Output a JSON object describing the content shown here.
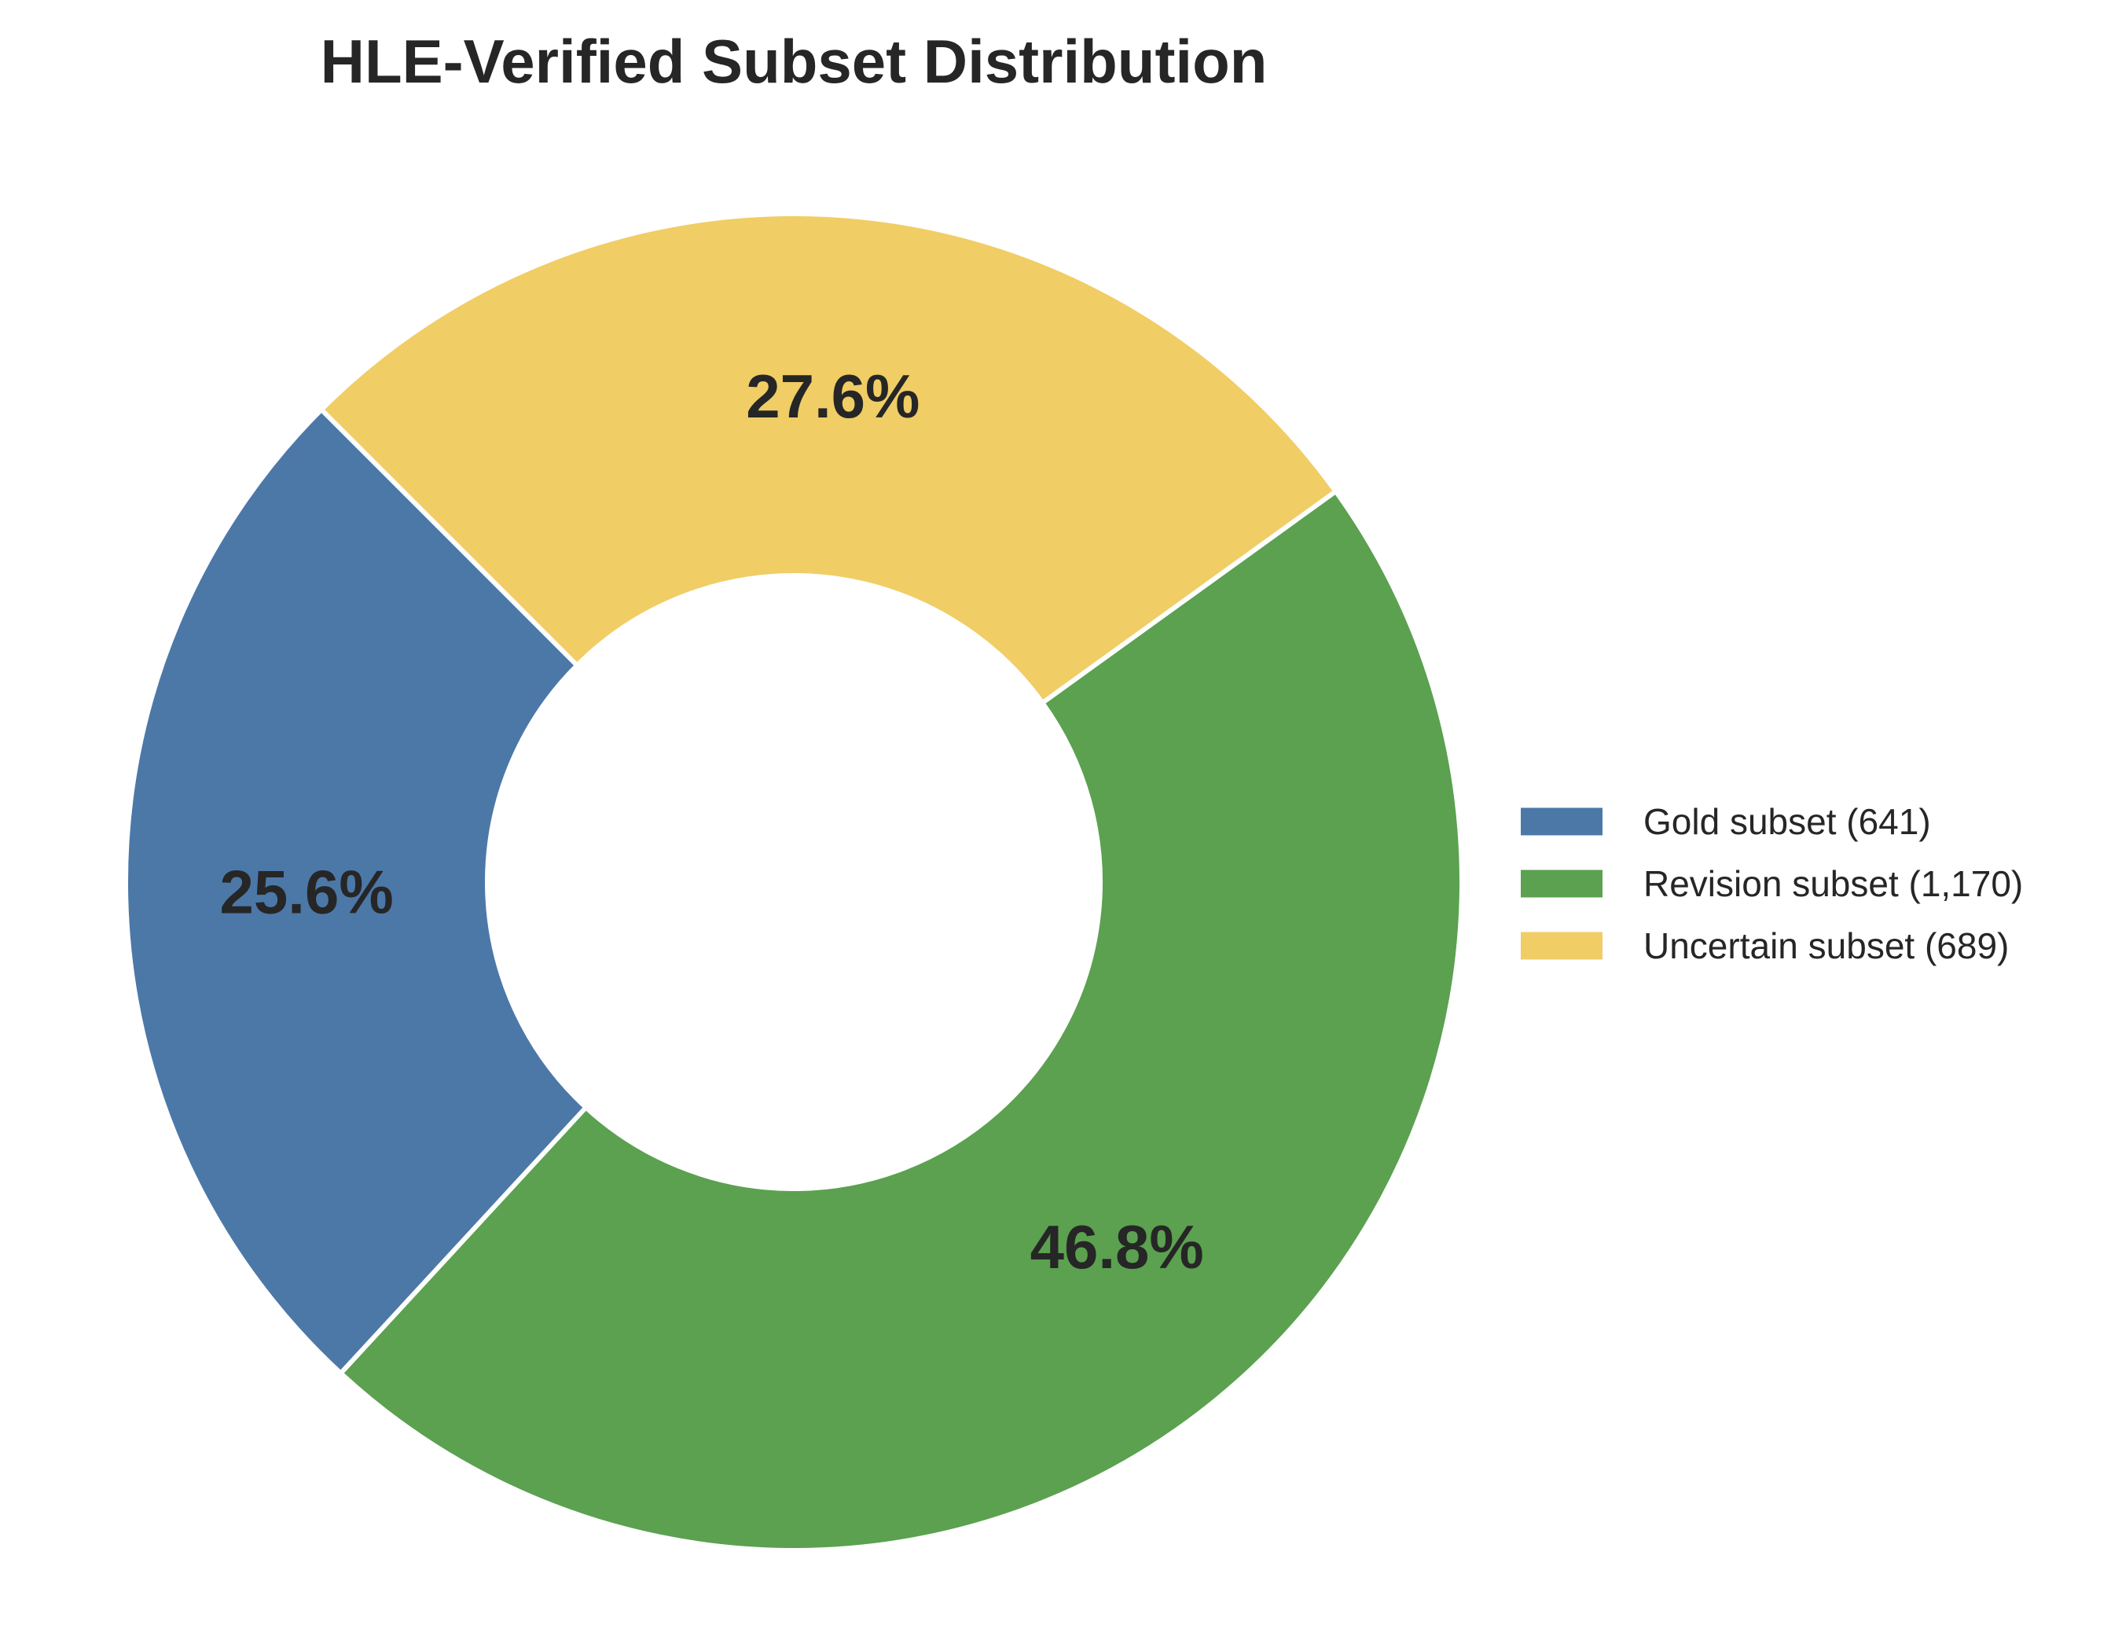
{
  "chart_data": {
    "type": "pie",
    "variant": "donut",
    "title": "HLE-Verified Subset Distribution",
    "categories": [
      "Gold subset",
      "Revision subset",
      "Uncertain subset"
    ],
    "values": [
      641,
      1170,
      689
    ],
    "percent_labels": [
      "25.6%",
      "46.8%",
      "27.6%"
    ],
    "legend_labels": [
      "Gold subset (641)",
      "Revision subset (1,170)",
      "Uncertain subset (689)"
    ],
    "colors": [
      "#4c78a8",
      "#5ba150",
      "#f0cd65"
    ],
    "legend_position": "right",
    "start_angle_deg": 135,
    "direction": "counterclockwise"
  }
}
